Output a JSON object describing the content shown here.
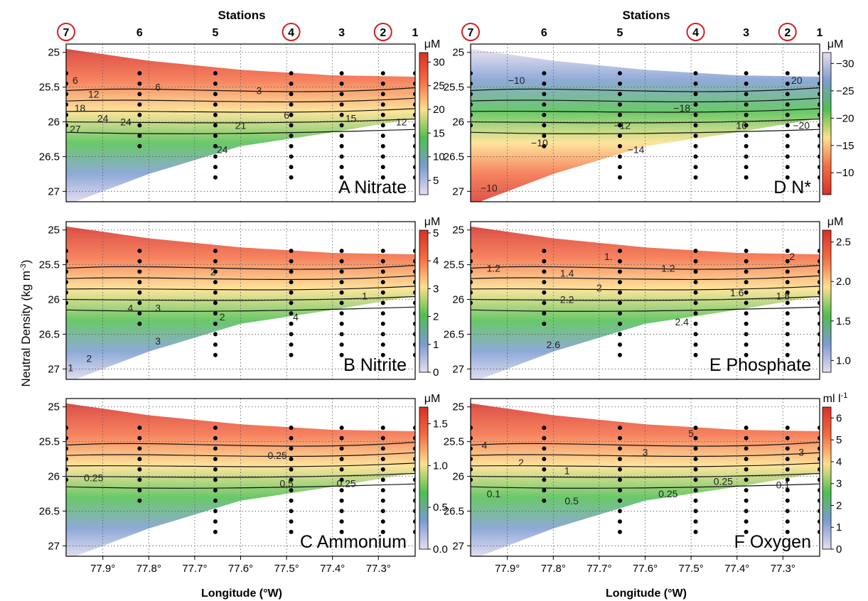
{
  "figure": {
    "ylabel_main": "Neutral Density (kg m",
    "ylabel_sup": "-3",
    "ylabel_close": ")",
    "xlabel": "Longitude (°W)",
    "stations_title": "Stations",
    "stations": [
      "7",
      "6",
      "5",
      "4",
      "3",
      "2",
      "1"
    ],
    "stations_circled": [
      "7",
      "4",
      "2"
    ],
    "station_lon": [
      77.98,
      77.82,
      77.655,
      77.49,
      77.38,
      77.29,
      77.22
    ],
    "x_ticks": [
      "77.9°",
      "77.8°",
      "77.7°",
      "77.6°",
      "77.5°",
      "77.4°",
      "77.3°"
    ],
    "x_tick_values": [
      77.9,
      77.8,
      77.7,
      77.6,
      77.5,
      77.4,
      77.3
    ],
    "y_ticks": [
      "25",
      "25.5",
      "26",
      "26.5",
      "27"
    ],
    "y_tick_values": [
      25,
      25.5,
      26,
      26.5,
      27
    ],
    "xlim": [
      77.98,
      77.22
    ],
    "ylim": [
      24.88,
      27.15
    ],
    "colors": {
      "ramp_high_red": "#d73027",
      "ramp_orange": "#f46d43",
      "ramp_yellow": "#fee08b",
      "ramp_green": "#4fbf4f",
      "ramp_blue": "#7b9bd0",
      "ramp_low_lavender": "#e7ddef",
      "circle": "#d32020"
    }
  },
  "chart_data": [
    {
      "type": "heatmap",
      "panel_label": "A",
      "title": "Nitrate",
      "unit": "μM",
      "colorbar_ticks": [
        "5",
        "10",
        "15",
        "20",
        "25",
        "30"
      ],
      "colorbar_values": [
        5,
        10,
        15,
        20,
        25,
        30
      ],
      "colorbar_range": [
        2,
        32
      ],
      "colorbar_reversed": false,
      "contour_labels": [
        {
          "text": "6",
          "x": 77.96,
          "y": 25.4
        },
        {
          "text": "6",
          "x": 77.78,
          "y": 25.5
        },
        {
          "text": "3",
          "x": 77.56,
          "y": 25.55
        },
        {
          "text": "12",
          "x": 77.92,
          "y": 25.6
        },
        {
          "text": "18",
          "x": 77.95,
          "y": 25.8
        },
        {
          "text": "24",
          "x": 77.9,
          "y": 25.95
        },
        {
          "text": "27",
          "x": 77.96,
          "y": 26.1
        },
        {
          "text": "24",
          "x": 77.85,
          "y": 26.0
        },
        {
          "text": "21",
          "x": 77.6,
          "y": 26.05
        },
        {
          "text": "24",
          "x": 77.64,
          "y": 26.4
        },
        {
          "text": "6",
          "x": 77.5,
          "y": 25.9
        },
        {
          "text": "15",
          "x": 77.36,
          "y": 25.95
        },
        {
          "text": "12",
          "x": 77.25,
          "y": 26.0
        }
      ]
    },
    {
      "type": "heatmap",
      "panel_label": "B",
      "title": "Nitrite",
      "unit": "μM",
      "colorbar_ticks": [
        "0",
        "1",
        "2",
        "3",
        "4",
        "5"
      ],
      "colorbar_values": [
        0,
        1,
        2,
        3,
        4,
        5
      ],
      "colorbar_range": [
        0,
        5.1
      ],
      "colorbar_reversed": false,
      "contour_labels": [
        {
          "text": "2",
          "x": 77.66,
          "y": 25.6
        },
        {
          "text": "4",
          "x": 77.84,
          "y": 26.12
        },
        {
          "text": "3",
          "x": 77.78,
          "y": 26.12
        },
        {
          "text": "2",
          "x": 77.64,
          "y": 26.25
        },
        {
          "text": "1",
          "x": 77.33,
          "y": 25.95
        },
        {
          "text": "4",
          "x": 77.48,
          "y": 26.25
        },
        {
          "text": "3",
          "x": 77.78,
          "y": 26.6
        },
        {
          "text": "2",
          "x": 77.93,
          "y": 26.85
        },
        {
          "text": "1",
          "x": 77.97,
          "y": 26.98
        }
      ]
    },
    {
      "type": "heatmap",
      "panel_label": "C",
      "title": "Ammonium",
      "unit": "μM",
      "colorbar_ticks": [
        "0.0",
        "0.5",
        "1.0",
        "1.5"
      ],
      "colorbar_values": [
        0,
        0.5,
        1.0,
        1.5
      ],
      "colorbar_range": [
        0,
        1.7
      ],
      "colorbar_reversed": false,
      "contour_labels": [
        {
          "text": "0.25",
          "x": 77.92,
          "y": 26.02
        },
        {
          "text": "0.25",
          "x": 77.52,
          "y": 25.7
        },
        {
          "text": "0.5",
          "x": 77.5,
          "y": 26.1
        },
        {
          "text": "0.25",
          "x": 77.37,
          "y": 26.1
        }
      ]
    },
    {
      "type": "heatmap",
      "panel_label": "D",
      "title": "N*",
      "unit": "μM",
      "colorbar_ticks": [
        "−10",
        "−15",
        "−20",
        "−25",
        "−30"
      ],
      "colorbar_values": [
        -10,
        -15,
        -20,
        -25,
        -30
      ],
      "colorbar_range": [
        -6,
        -32
      ],
      "colorbar_reversed": true,
      "contour_labels": [
        {
          "text": "−10",
          "x": 77.88,
          "y": 25.4
        },
        {
          "text": "−12",
          "x": 77.65,
          "y": 26.05
        },
        {
          "text": "−18",
          "x": 77.52,
          "y": 25.8
        },
        {
          "text": "−10",
          "x": 77.83,
          "y": 26.3
        },
        {
          "text": "−14",
          "x": 77.62,
          "y": 26.4
        },
        {
          "text": "−10",
          "x": 77.94,
          "y": 26.95
        },
        {
          "text": "20",
          "x": 77.27,
          "y": 25.4
        },
        {
          "text": "−20",
          "x": 77.26,
          "y": 26.05
        },
        {
          "text": "16",
          "x": 77.39,
          "y": 26.05
        }
      ]
    },
    {
      "type": "heatmap",
      "panel_label": "E",
      "title": "Phosphate",
      "unit": "μM",
      "colorbar_ticks": [
        "1.0",
        "1.5",
        "2.0",
        "2.5"
      ],
      "colorbar_values": [
        1.0,
        1.5,
        2.0,
        2.5
      ],
      "colorbar_range": [
        0.85,
        2.65
      ],
      "colorbar_reversed": false,
      "contour_labels": [
        {
          "text": "1.",
          "x": 77.68,
          "y": 25.38
        },
        {
          "text": "1.2",
          "x": 77.93,
          "y": 25.55
        },
        {
          "text": "1.4",
          "x": 77.77,
          "y": 25.62
        },
        {
          "text": "1.2",
          "x": 77.55,
          "y": 25.55
        },
        {
          "text": "2",
          "x": 77.28,
          "y": 25.38
        },
        {
          "text": "2",
          "x": 77.7,
          "y": 25.83
        },
        {
          "text": "2.2",
          "x": 77.77,
          "y": 26.0
        },
        {
          "text": "1.6",
          "x": 77.4,
          "y": 25.9
        },
        {
          "text": "1.8",
          "x": 77.3,
          "y": 25.95
        },
        {
          "text": "2.4",
          "x": 77.52,
          "y": 26.32
        },
        {
          "text": "2.6",
          "x": 77.8,
          "y": 26.65
        }
      ]
    },
    {
      "type": "heatmap",
      "panel_label": "F",
      "title": "Oxygen",
      "unit": "ml l",
      "unit_sup": "-1",
      "colorbar_ticks": [
        "0",
        "1",
        "2",
        "3",
        "4",
        "5",
        "6"
      ],
      "colorbar_values": [
        0,
        1,
        2,
        3,
        4,
        5,
        6
      ],
      "colorbar_range": [
        0,
        6.5
      ],
      "colorbar_reversed": false,
      "contour_labels": [
        {
          "text": "5",
          "x": 77.5,
          "y": 25.38
        },
        {
          "text": "4",
          "x": 77.95,
          "y": 25.55
        },
        {
          "text": "3",
          "x": 77.6,
          "y": 25.65
        },
        {
          "text": "2",
          "x": 77.87,
          "y": 25.8
        },
        {
          "text": "1",
          "x": 77.77,
          "y": 25.92
        },
        {
          "text": "0.1",
          "x": 77.93,
          "y": 26.25
        },
        {
          "text": "0.25",
          "x": 77.55,
          "y": 26.25
        },
        {
          "text": "0.25",
          "x": 77.43,
          "y": 26.07
        },
        {
          "text": "3",
          "x": 77.26,
          "y": 25.65
        },
        {
          "text": "0.1",
          "x": 77.3,
          "y": 26.12
        },
        {
          "text": "0.5",
          "x": 77.76,
          "y": 26.35
        }
      ]
    }
  ]
}
